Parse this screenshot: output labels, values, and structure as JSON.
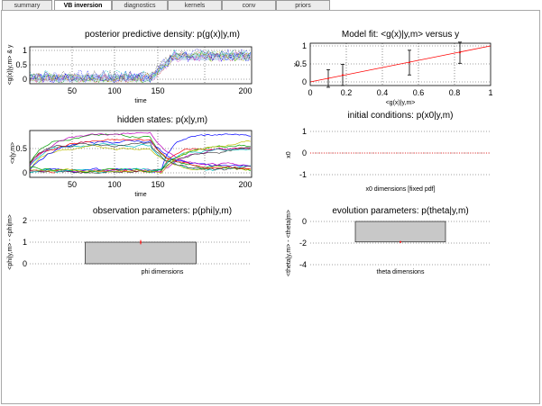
{
  "tabs": [
    {
      "label": "summary",
      "active": false
    },
    {
      "label": "VB inversion",
      "active": true
    },
    {
      "label": "diagnostics",
      "active": false
    },
    {
      "label": "kernels",
      "active": false
    },
    {
      "label": "conv",
      "active": false
    },
    {
      "label": "priors",
      "active": false
    }
  ],
  "panels": {
    "posterior": {
      "title": "posterior predictive density: p(g(x)|y,m)",
      "xlabel": "time",
      "ylabel": "<g(x)|y,m> & y",
      "xticks": [
        "50",
        "100",
        "150",
        "200"
      ],
      "yticks": [
        "0",
        "0.5",
        "1"
      ]
    },
    "fit": {
      "title": "Model fit: <g(x)|y,m> versus y",
      "xlabel": "<g(x)|y,m>",
      "ylabel": "y",
      "xticks": [
        "0",
        "0.2",
        "0.4",
        "0.6",
        "0.8",
        "1"
      ],
      "yticks": [
        "0",
        "0.5",
        "1"
      ]
    },
    "hidden": {
      "title": "hidden states: p(x|y,m)",
      "xlabel": "time",
      "ylabel": "<x|y,m>",
      "xticks": [
        "50",
        "100",
        "150",
        "200"
      ],
      "yticks": [
        "0",
        "0.5"
      ]
    },
    "initial": {
      "title": "initial conditions: p(x0|y,m)",
      "xlabel": "x0 dimensions [fixed pdf]",
      "ylabel": "x0",
      "yticks": [
        "-1",
        "0",
        "1"
      ]
    },
    "observation": {
      "title": "observation parameters: p(phi|y,m)",
      "xlabel": "phi dimensions",
      "ylabel": "<phi|y,m> - <phi|m>",
      "yticks": [
        "0",
        "1",
        "2"
      ]
    },
    "evolution": {
      "title": "evolution parameters: p(theta|y,m)",
      "xlabel": "theta dimensions",
      "ylabel": "<theta|y,m> - <theta|m>",
      "yticks": [
        "-4",
        "-2",
        "0"
      ]
    }
  },
  "chart_data": [
    {
      "type": "line",
      "title": "posterior predictive density: p(g(x)|y,m)",
      "xlabel": "time",
      "ylabel": "<g(x)|y,m> & y",
      "xlim": [
        1,
        200
      ],
      "ylim": [
        -0.15,
        1.15
      ],
      "regimes": [
        {
          "x": [
            1,
            110
          ],
          "y": 0.05
        },
        {
          "x": [
            130,
            200
          ],
          "y": 0.8
        }
      ],
      "transition": [
        110,
        130
      ],
      "grid": true
    },
    {
      "type": "scatter",
      "title": "Model fit: <g(x)|y,m> versus y",
      "xlabel": "<g(x)|y,m>",
      "ylabel": "y",
      "xlim": [
        0,
        1
      ],
      "ylim": [
        -0.1,
        1.1
      ],
      "points": [
        {
          "x": 0.1,
          "y": 0.1,
          "err": 0.25
        },
        {
          "x": 0.18,
          "y": 0.2,
          "err": 0.3
        },
        {
          "x": 0.55,
          "y": 0.55,
          "err": 0.35
        },
        {
          "x": 0.83,
          "y": 0.83,
          "err": 0.3
        }
      ],
      "identity_line": [
        [
          0,
          0
        ],
        [
          1,
          1
        ]
      ],
      "grid": true
    },
    {
      "type": "line",
      "title": "hidden states: p(x|y,m)",
      "xlabel": "time",
      "ylabel": "<x|y,m>",
      "xlim": [
        1,
        200
      ],
      "ylim": [
        -0.05,
        0.95
      ],
      "grid": true
    },
    {
      "type": "bar",
      "title": "initial conditions: p(x0|y,m)",
      "xlabel": "x0 dimensions [fixed pdf]",
      "ylabel": "x0",
      "values": [
        0
      ],
      "ylim": [
        -1,
        1
      ],
      "grid": true
    },
    {
      "type": "bar",
      "title": "observation parameters: p(phi|y,m)",
      "xlabel": "phi dimensions",
      "ylabel": "<phi|y,m> - <phi|m>",
      "values": [
        1.0
      ],
      "errors": [
        0.1
      ],
      "ylim": [
        0,
        2
      ],
      "grid": true
    },
    {
      "type": "bar",
      "title": "evolution parameters: p(theta|y,m)",
      "xlabel": "theta dimensions",
      "ylabel": "<theta|y,m> - <theta|m>",
      "values": [
        -1.9
      ],
      "errors": [
        0.1
      ],
      "ylim": [
        -4,
        0
      ],
      "grid": true
    }
  ],
  "colors": {
    "bar_fill": "#c8c8c8",
    "fit_line": "#ff0000",
    "series": [
      "#0000ff",
      "#00a000",
      "#ff0000",
      "#00bfbf",
      "#bf00bf",
      "#bfbf00",
      "#404040"
    ]
  }
}
